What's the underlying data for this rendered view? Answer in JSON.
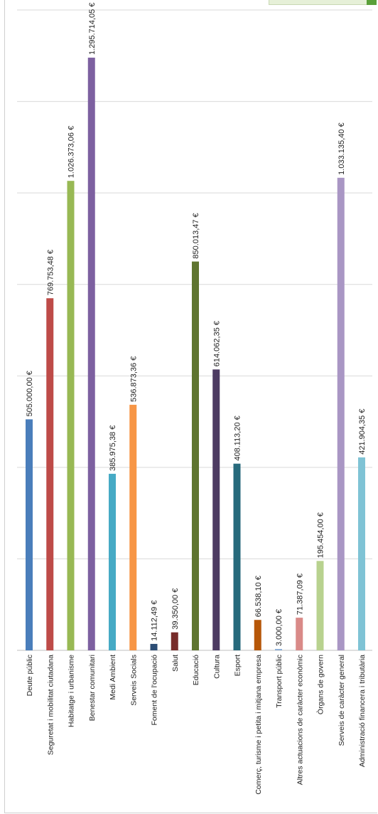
{
  "colors": {
    "gridline": "#d9d9d9",
    "axis": "#bfbfbf"
  },
  "chart_data": {
    "type": "bar",
    "orientation": "vertical",
    "grid": true,
    "ylim": [
      0,
      1400000
    ],
    "categories": [
      "Deute públic",
      "Seguretat i mobilitat ciutadana",
      "Habitatge i urbanisme",
      "Benestar comunitari",
      "Medi Ambient",
      "Serveis Socials",
      "Foment de l'ocupació",
      "Salut",
      "Educació",
      "Cultura",
      "Esport",
      "Comerç, turisme i petita i mitjana empresa",
      "Transport públic",
      "Altres actuacions de caràcter econòmic",
      "Òrgans de govern",
      "Serveis de caràcter general",
      "Administració financera i tributària"
    ],
    "values": [
      505000.0,
      769753.48,
      1026373.06,
      1295714.05,
      385975.38,
      536873.36,
      14112.49,
      39350.0,
      850013.47,
      614062.35,
      408113.2,
      66538.1,
      3000.0,
      71387.09,
      195454.0,
      1033135.4,
      421904.35
    ],
    "value_labels": [
      "505.000,00 €",
      "769.753,48 €",
      "1.026.373,06 €",
      "1.295.714,05 €",
      "385.975,38 €",
      "536.873,36 €",
      "14.112,49 €",
      "39.350,00 €",
      "850.013,47 €",
      "614.062,35 €",
      "408.113,20 €",
      "66.538,10 €",
      "3.000,00 €",
      "71.387,09 €",
      "195.454,00 €",
      "1.033.135,40 €",
      "421.904,35 €"
    ],
    "bar_colors": [
      "#4a7ebb",
      "#be4b48",
      "#98b954",
      "#7d60a0",
      "#46aac5",
      "#f79646",
      "#2c4d75",
      "#772c2a",
      "#5f7530",
      "#4d3b62",
      "#276a7c",
      "#b65708",
      "#8fb0d8",
      "#d98a88",
      "#b8d28f",
      "#a996c4",
      "#7fc3d5"
    ]
  }
}
